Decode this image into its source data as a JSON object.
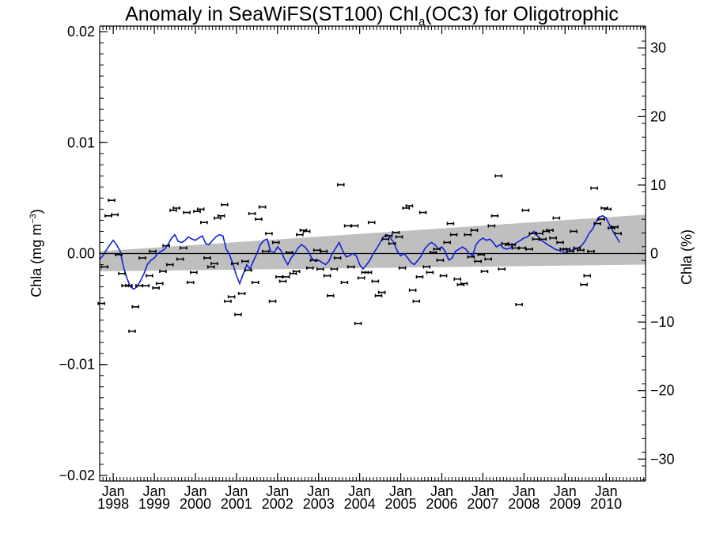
{
  "chart_data": {
    "type": "scatter",
    "title": {
      "main": "Anomaly in SeaWiFS(ST100) Chl",
      "subscript": "a",
      "rest": "(OC3) for Oligotrophic"
    },
    "ylabel_left": {
      "main": "Chla (mg m",
      "superscript": "−3",
      "close": ")"
    },
    "ylabel_right": "Chla (%)",
    "xlim": [
      1997.67,
      2010.96
    ],
    "ylim": [
      -0.0205,
      0.0205
    ],
    "ylim_right": [
      -33.2,
      33.2
    ],
    "left_ticks": [
      "0.02",
      "0.01",
      "0.00",
      "−0.01",
      "−0.02"
    ],
    "left_tick_values": [
      0.02,
      0.01,
      0.0,
      -0.01,
      -0.02
    ],
    "right_ticks": [
      "30",
      "20",
      "10",
      "0",
      "−10",
      "−20",
      "−30"
    ],
    "right_tick_values": [
      30,
      20,
      10,
      0,
      -10,
      -20,
      -30
    ],
    "x_tick_top": "Jan",
    "x_tick_years": [
      "1998",
      "1999",
      "2000",
      "2001",
      "2002",
      "2003",
      "2004",
      "2005",
      "2006",
      "2007",
      "2008",
      "2009",
      "2010"
    ],
    "x_tick_values": [
      1998,
      1999,
      2000,
      2001,
      2002,
      2003,
      2004,
      2005,
      2006,
      2007,
      2008,
      2009,
      2010
    ],
    "colors": {
      "line": "#1020d8",
      "band": "#bfbfbf",
      "points": "#000000",
      "zero_line": "#000000"
    },
    "trend_band": {
      "x": [
        1997.67,
        2010.96
      ],
      "upper": [
        0.0002,
        0.0035
      ],
      "lower": [
        -0.0016,
        -0.001
      ]
    },
    "zero_line": 0,
    "monthly_points": [
      [
        1997.71,
        -0.0045
      ],
      [
        1997.79,
        -0.0012
      ],
      [
        1997.88,
        0.0034
      ],
      [
        1997.96,
        0.0048
      ],
      [
        1998.04,
        0.0035
      ],
      [
        1998.13,
        -0.0001
      ],
      [
        1998.21,
        -0.0018
      ],
      [
        1998.29,
        -0.0029
      ],
      [
        1998.38,
        -0.0029
      ],
      [
        1998.46,
        -0.007
      ],
      [
        1998.54,
        -0.0048
      ],
      [
        1998.63,
        -0.0029
      ],
      [
        1998.71,
        -0.0004
      ],
      [
        1998.79,
        -0.0029
      ],
      [
        1998.88,
        -0.002
      ],
      [
        1998.96,
        0.0002
      ],
      [
        1999.04,
        -0.0031
      ],
      [
        1999.13,
        -0.0027
      ],
      [
        1999.21,
        -0.0016
      ],
      [
        1999.29,
        0.0007
      ],
      [
        1999.38,
        -0.001
      ],
      [
        1999.46,
        0.0039
      ],
      [
        1999.54,
        0.0041
      ],
      [
        1999.63,
        -0.0005
      ],
      [
        1999.71,
        0.0005
      ],
      [
        1999.79,
        0.0037
      ],
      [
        1999.88,
        -0.0026
      ],
      [
        1999.96,
        -0.0017
      ],
      [
        2000.04,
        0.0038
      ],
      [
        2000.13,
        0.004
      ],
      [
        2000.21,
        0.0028
      ],
      [
        2000.29,
        -0.0004
      ],
      [
        2000.38,
        -0.0012
      ],
      [
        2000.46,
        -0.0009
      ],
      [
        2000.54,
        0.0032
      ],
      [
        2000.63,
        0.0034
      ],
      [
        2000.71,
        0.0044
      ],
      [
        2000.79,
        -0.0043
      ],
      [
        2000.88,
        -0.0039
      ],
      [
        2000.96,
        -0.0009
      ],
      [
        2001.04,
        -0.0055
      ],
      [
        2001.13,
        -0.0036
      ],
      [
        2001.21,
        -0.0007
      ],
      [
        2001.29,
        -0.0015
      ],
      [
        2001.38,
        0.0036
      ],
      [
        2001.46,
        -0.0026
      ],
      [
        2001.54,
        0.0031
      ],
      [
        2001.63,
        0.0042
      ],
      [
        2001.71,
        0.0002
      ],
      [
        2001.79,
        0.0018
      ],
      [
        2001.88,
        -0.0043
      ],
      [
        2001.96,
        0.001
      ],
      [
        2002.04,
        -0.0021
      ],
      [
        2002.13,
        -0.0025
      ],
      [
        2002.21,
        -0.0021
      ],
      [
        2002.29,
        0.0001
      ],
      [
        2002.38,
        -0.0018
      ],
      [
        2002.46,
        -0.0016
      ],
      [
        2002.54,
        0.0017
      ],
      [
        2002.63,
        0.0021
      ],
      [
        2002.71,
        0.002
      ],
      [
        2002.79,
        -0.0013
      ],
      [
        2002.88,
        -0.0006
      ],
      [
        2002.96,
        0.0003
      ],
      [
        2003.04,
        -0.0014
      ],
      [
        2003.13,
        0.0002
      ],
      [
        2003.21,
        -0.002
      ],
      [
        2003.29,
        -0.0038
      ],
      [
        2003.38,
        -0.0014
      ],
      [
        2003.46,
        -0.0004
      ],
      [
        2003.54,
        0.0062
      ],
      [
        2003.63,
        -0.0026
      ],
      [
        2003.71,
        0.0025
      ],
      [
        2003.79,
        -0.0012
      ],
      [
        2003.88,
        0.0025
      ],
      [
        2003.96,
        -0.0063
      ],
      [
        2004.04,
        -0.0022
      ],
      [
        2004.13,
        -0.0017
      ],
      [
        2004.21,
        -0.0017
      ],
      [
        2004.29,
        0.0028
      ],
      [
        2004.38,
        -0.0025
      ],
      [
        2004.46,
        -0.0038
      ],
      [
        2004.54,
        -0.0035
      ],
      [
        2004.63,
        0.0013
      ],
      [
        2004.71,
        0.0016
      ],
      [
        2004.79,
        0.0009
      ],
      [
        2004.88,
        0.0019
      ],
      [
        2004.96,
        0.0015
      ],
      [
        2005.04,
        -0.0013
      ],
      [
        2005.13,
        0.0041
      ],
      [
        2005.21,
        0.0043
      ],
      [
        2005.29,
        -0.0033
      ],
      [
        2005.38,
        -0.0043
      ],
      [
        2005.46,
        -0.0021
      ],
      [
        2005.54,
        0.0037
      ],
      [
        2005.63,
        -0.0012
      ],
      [
        2005.71,
        -0.0017
      ],
      [
        2005.79,
        0.0001
      ],
      [
        2005.88,
        0.0004
      ],
      [
        2005.96,
        -0.0006
      ],
      [
        2006.04,
        -0.002
      ],
      [
        2006.13,
        0.001
      ],
      [
        2006.21,
        0.0027
      ],
      [
        2006.29,
        0.0017
      ],
      [
        2006.38,
        -0.0023
      ],
      [
        2006.46,
        -0.0028
      ],
      [
        2006.54,
        -0.0027
      ],
      [
        2006.63,
        0.0017
      ],
      [
        2006.71,
        -0.0003
      ],
      [
        2006.79,
        0.0021
      ],
      [
        2006.88,
        -0.0007
      ],
      [
        2006.96,
        -0.0001
      ],
      [
        2007.04,
        -0.0016
      ],
      [
        2007.13,
        -0.0005
      ],
      [
        2007.21,
        0.0025
      ],
      [
        2007.29,
        0.0034
      ],
      [
        2007.38,
        0.007
      ],
      [
        2007.46,
        -0.0014
      ],
      [
        2007.54,
        0.0009
      ],
      [
        2007.63,
        0.0008
      ],
      [
        2007.71,
        0.0008
      ],
      [
        2007.79,
        0.0005
      ],
      [
        2007.88,
        -0.0046
      ],
      [
        2007.96,
        0.0005
      ],
      [
        2008.04,
        0.0039
      ],
      [
        2008.13,
        0.0004
      ],
      [
        2008.21,
        0.0018
      ],
      [
        2008.29,
        0.0013
      ],
      [
        2008.38,
        0.0018
      ],
      [
        2008.46,
        0.0013
      ],
      [
        2008.54,
        0.002
      ],
      [
        2008.63,
        0.0021
      ],
      [
        2008.71,
        0.0014
      ],
      [
        2008.79,
        0.0032
      ],
      [
        2008.88,
        0.001
      ],
      [
        2008.96,
        0.0004
      ],
      [
        2009.04,
        0.0004
      ],
      [
        2009.13,
        0.0002
      ],
      [
        2009.21,
        0.002
      ],
      [
        2009.29,
        0.0005
      ],
      [
        2009.38,
        0.0003
      ],
      [
        2009.46,
        -0.0028
      ],
      [
        2009.54,
        -0.002
      ],
      [
        2009.63,
        0.0002
      ],
      [
        2009.71,
        0.0059
      ],
      [
        2009.79,
        0.0027
      ],
      [
        2009.88,
        0.0031
      ],
      [
        2009.96,
        0.0041
      ],
      [
        2010.04,
        0.004
      ],
      [
        2010.13,
        0.0023
      ],
      [
        2010.21,
        0.0024
      ],
      [
        2010.29,
        0.0018
      ]
    ],
    "smoothed_line": [
      [
        1997.67,
        -0.0005
      ],
      [
        1997.75,
        -0.0002
      ],
      [
        1997.83,
        0.0003
      ],
      [
        1997.92,
        0.0008
      ],
      [
        1998.0,
        0.0012
      ],
      [
        1998.08,
        0.0008
      ],
      [
        1998.17,
        0.0002
      ],
      [
        1998.25,
        -0.0012
      ],
      [
        1998.33,
        -0.0022
      ],
      [
        1998.42,
        -0.003
      ],
      [
        1998.5,
        -0.0032
      ],
      [
        1998.58,
        -0.003
      ],
      [
        1998.67,
        -0.0024
      ],
      [
        1998.75,
        -0.0018
      ],
      [
        1998.83,
        -0.001
      ],
      [
        1998.92,
        -0.0006
      ],
      [
        1999.0,
        -0.0004
      ],
      [
        1999.08,
        0.0
      ],
      [
        1999.17,
        0.0002
      ],
      [
        1999.25,
        0.0004
      ],
      [
        1999.33,
        0.0008
      ],
      [
        1999.42,
        0.0014
      ],
      [
        1999.5,
        0.0017
      ],
      [
        1999.58,
        0.0011
      ],
      [
        1999.67,
        0.001
      ],
      [
        1999.75,
        0.0012
      ],
      [
        1999.83,
        0.0015
      ],
      [
        1999.92,
        0.0013
      ],
      [
        2000.0,
        0.0012
      ],
      [
        2000.08,
        0.0014
      ],
      [
        2000.17,
        0.0016
      ],
      [
        2000.25,
        0.0009
      ],
      [
        2000.33,
        0.0008
      ],
      [
        2000.42,
        0.0012
      ],
      [
        2000.5,
        0.0015
      ],
      [
        2000.58,
        0.0017
      ],
      [
        2000.67,
        0.0016
      ],
      [
        2000.75,
        0.0004
      ],
      [
        2000.83,
        -0.0001
      ],
      [
        2000.92,
        -0.001
      ],
      [
        2001.0,
        -0.002
      ],
      [
        2001.08,
        -0.0027
      ],
      [
        2001.17,
        -0.0018
      ],
      [
        2001.25,
        -0.001
      ],
      [
        2001.33,
        -0.0014
      ],
      [
        2001.42,
        -0.0006
      ],
      [
        2001.5,
        0.0
      ],
      [
        2001.58,
        0.0008
      ],
      [
        2001.67,
        0.0012
      ],
      [
        2001.75,
        0.0013
      ],
      [
        2001.83,
        0.0002
      ],
      [
        2001.92,
        0.0001
      ],
      [
        2002.0,
        0.0006
      ],
      [
        2002.08,
        0.0003
      ],
      [
        2002.17,
        -0.0005
      ],
      [
        2002.25,
        -0.001
      ],
      [
        2002.33,
        -0.0004
      ],
      [
        2002.42,
        0.0
      ],
      [
        2002.5,
        0.0005
      ],
      [
        2002.58,
        0.0008
      ],
      [
        2002.67,
        0.0006
      ],
      [
        2002.75,
        0.0002
      ],
      [
        2002.83,
        -0.0004
      ],
      [
        2002.92,
        -0.0007
      ],
      [
        2003.0,
        -0.0006
      ],
      [
        2003.08,
        -0.0008
      ],
      [
        2003.17,
        -0.001
      ],
      [
        2003.25,
        -0.0007
      ],
      [
        2003.33,
        0.0
      ],
      [
        2003.42,
        0.0005
      ],
      [
        2003.5,
        0.001
      ],
      [
        2003.58,
        0.0003
      ],
      [
        2003.67,
        -0.0003
      ],
      [
        2003.75,
        -0.0002
      ],
      [
        2003.83,
        0.0
      ],
      [
        2003.92,
        -0.0002
      ],
      [
        2004.0,
        -0.001
      ],
      [
        2004.08,
        -0.0014
      ],
      [
        2004.17,
        -0.001
      ],
      [
        2004.25,
        -0.0006
      ],
      [
        2004.33,
        0.0
      ],
      [
        2004.42,
        0.0005
      ],
      [
        2004.5,
        0.001
      ],
      [
        2004.58,
        0.0015
      ],
      [
        2004.67,
        0.0017
      ],
      [
        2004.75,
        0.0014
      ],
      [
        2004.83,
        0.001
      ],
      [
        2004.92,
        0.0002
      ],
      [
        2005.0,
        -0.0002
      ],
      [
        2005.08,
        0.0
      ],
      [
        2005.17,
        -0.0004
      ],
      [
        2005.25,
        -0.0008
      ],
      [
        2005.33,
        -0.001
      ],
      [
        2005.42,
        -0.0006
      ],
      [
        2005.5,
        -0.0002
      ],
      [
        2005.58,
        0.0004
      ],
      [
        2005.67,
        0.0008
      ],
      [
        2005.75,
        0.001
      ],
      [
        2005.83,
        0.0008
      ],
      [
        2005.92,
        0.0004
      ],
      [
        2006.0,
        0.0006
      ],
      [
        2006.08,
        0.0002
      ],
      [
        2006.17,
        -0.0006
      ],
      [
        2006.25,
        -0.0004
      ],
      [
        2006.33,
        0.0002
      ],
      [
        2006.42,
        0.0004
      ],
      [
        2006.5,
        0.0006
      ],
      [
        2006.58,
        0.0004
      ],
      [
        2006.67,
        0.0
      ],
      [
        2006.75,
        -0.0002
      ],
      [
        2006.83,
        0.0008
      ],
      [
        2006.92,
        0.0012
      ],
      [
        2007.0,
        0.0014
      ],
      [
        2007.08,
        0.0012
      ],
      [
        2007.17,
        0.0013
      ],
      [
        2007.25,
        0.001
      ],
      [
        2007.33,
        0.0006
      ],
      [
        2007.42,
        0.0008
      ],
      [
        2007.5,
        0.0005
      ],
      [
        2007.58,
        0.0004
      ],
      [
        2007.67,
        0.0005
      ],
      [
        2007.75,
        0.0008
      ],
      [
        2007.83,
        0.001
      ],
      [
        2007.92,
        0.0012
      ],
      [
        2008.0,
        0.0014
      ],
      [
        2008.08,
        0.0015
      ],
      [
        2008.17,
        0.0018
      ],
      [
        2008.25,
        0.002
      ],
      [
        2008.33,
        0.0016
      ],
      [
        2008.42,
        0.0012
      ],
      [
        2008.5,
        0.001
      ],
      [
        2008.58,
        0.0008
      ],
      [
        2008.67,
        0.0006
      ],
      [
        2008.75,
        0.0004
      ],
      [
        2008.83,
        0.0003
      ],
      [
        2008.92,
        0.0002
      ],
      [
        2009.0,
        0.0001
      ],
      [
        2009.08,
        0.0002
      ],
      [
        2009.17,
        0.0003
      ],
      [
        2009.25,
        0.0004
      ],
      [
        2009.33,
        0.0005
      ],
      [
        2009.42,
        0.0008
      ],
      [
        2009.5,
        0.0012
      ],
      [
        2009.58,
        0.0018
      ],
      [
        2009.67,
        0.0022
      ],
      [
        2009.75,
        0.0028
      ],
      [
        2009.83,
        0.0033
      ],
      [
        2009.92,
        0.0034
      ],
      [
        2010.0,
        0.0032
      ],
      [
        2010.08,
        0.0026
      ],
      [
        2010.17,
        0.002
      ],
      [
        2010.25,
        0.0015
      ],
      [
        2010.33,
        0.001
      ]
    ]
  }
}
